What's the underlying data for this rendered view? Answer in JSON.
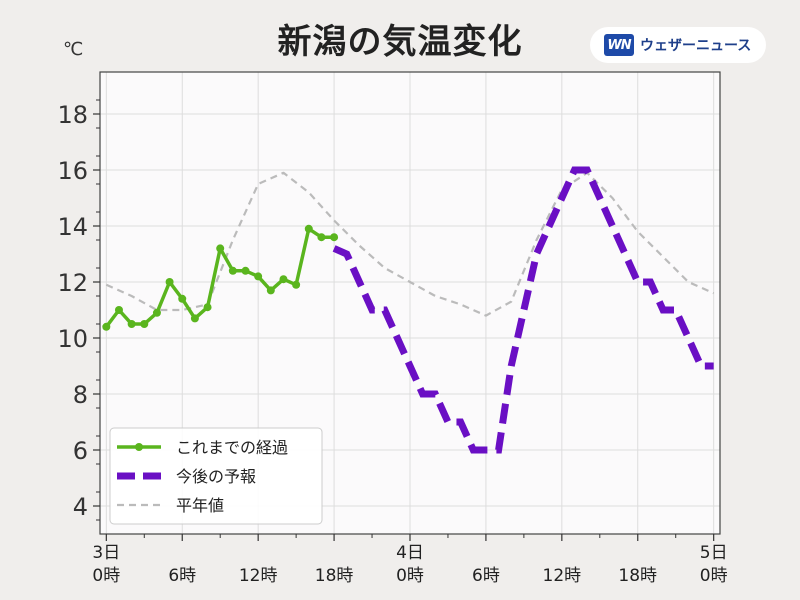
{
  "title": "新潟の気温変化",
  "brand": {
    "logo_text": "WN",
    "name": "ウェザーニュース"
  },
  "colors": {
    "observed": "#5ab51e",
    "forecast": "#6a0fc4",
    "normal": "#bbbbbb",
    "plot_bg": "#fbfafb",
    "grid": "#dddddd"
  },
  "chart_data": {
    "type": "line",
    "title": "新潟の気温変化",
    "ylabel": "℃",
    "ylim": [
      3,
      19.5
    ],
    "xlim": [
      -0.5,
      48.5
    ],
    "grid": true,
    "legend_position": "bottom-left",
    "yticks": [
      4,
      6,
      8,
      10,
      12,
      14,
      16,
      18
    ],
    "xticks": [
      {
        "hour": 0,
        "line1": "3日",
        "line2": "0時"
      },
      {
        "hour": 6,
        "line1": "",
        "line2": "6時"
      },
      {
        "hour": 12,
        "line1": "",
        "line2": "12時"
      },
      {
        "hour": 18,
        "line1": "",
        "line2": "18時"
      },
      {
        "hour": 24,
        "line1": "4日",
        "line2": "0時"
      },
      {
        "hour": 30,
        "line1": "",
        "line2": "6時"
      },
      {
        "hour": 36,
        "line1": "",
        "line2": "12時"
      },
      {
        "hour": 42,
        "line1": "",
        "line2": "18時"
      },
      {
        "hour": 48,
        "line1": "5日",
        "line2": "0時"
      }
    ],
    "series": [
      {
        "name": "これまでの経過",
        "style": "solid-markers",
        "x": [
          0,
          1,
          2,
          3,
          4,
          5,
          6,
          7,
          8,
          9,
          10,
          11,
          12,
          13,
          14,
          15,
          16,
          17,
          18
        ],
        "y": [
          10.4,
          11.0,
          10.5,
          10.5,
          10.9,
          12.0,
          11.4,
          10.7,
          11.1,
          13.2,
          12.4,
          12.4,
          12.2,
          11.7,
          12.1,
          11.9,
          13.9,
          13.6,
          13.6
        ]
      },
      {
        "name": "今後の予報",
        "style": "thick-dashed",
        "x": [
          18,
          19,
          20,
          21,
          22,
          23,
          24,
          25,
          26,
          27,
          28,
          29,
          30,
          31,
          32,
          33,
          34,
          35,
          36,
          37,
          38,
          39,
          40,
          41,
          42,
          43,
          44,
          45,
          46,
          47,
          48
        ],
        "y": [
          13.2,
          13.0,
          12.0,
          11.0,
          11.0,
          10.0,
          9.0,
          8.0,
          8.0,
          7.0,
          7.0,
          6.0,
          6.0,
          6.0,
          9.0,
          11.0,
          13.0,
          14.0,
          15.0,
          16.0,
          16.0,
          15.0,
          14.0,
          13.0,
          12.0,
          12.0,
          11.0,
          11.0,
          10.0,
          9.0,
          9.0
        ]
      },
      {
        "name": "平年値",
        "style": "thin-dashed",
        "x": [
          0,
          2,
          4,
          6,
          8,
          10,
          12,
          14,
          16,
          18,
          20,
          22,
          24,
          26,
          28,
          30,
          32,
          34,
          36,
          38,
          40,
          42,
          44,
          46,
          48
        ],
        "y": [
          11.9,
          11.5,
          11.0,
          11.0,
          11.2,
          13.5,
          15.5,
          15.9,
          15.2,
          14.2,
          13.3,
          12.5,
          12.0,
          11.5,
          11.2,
          10.8,
          11.3,
          13.5,
          15.3,
          15.9,
          15.0,
          13.8,
          12.9,
          12.0,
          11.6
        ]
      }
    ]
  }
}
